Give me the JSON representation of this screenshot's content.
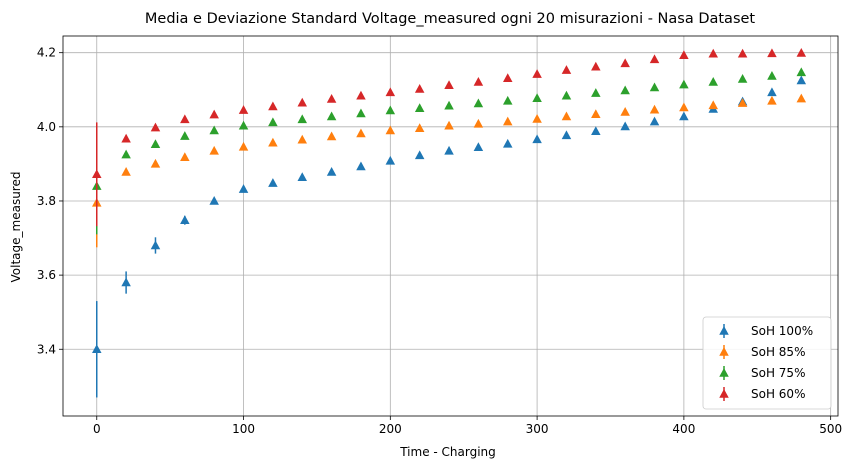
{
  "chart_data": {
    "type": "scatter",
    "title": "Media e Deviazione Standard Voltage_measured  ogni 20 misurazioni - Nasa Dataset",
    "xlabel": "Time - Charging",
    "ylabel": "Voltage_measured",
    "xlim": [
      -23,
      505
    ],
    "ylim": [
      3.22,
      4.245
    ],
    "xticks": [
      0,
      100,
      200,
      300,
      400,
      500
    ],
    "yticks": [
      3.4,
      3.6,
      3.8,
      4.0,
      4.2
    ],
    "xtick_labels": [
      "0",
      "100",
      "200",
      "300",
      "400",
      "500"
    ],
    "ytick_labels": [
      "3.4",
      "3.6",
      "3.8",
      "4.0",
      "4.2"
    ],
    "grid": true,
    "legend_position": "bottom-right",
    "x": [
      0,
      20,
      40,
      60,
      80,
      100,
      120,
      140,
      160,
      180,
      200,
      220,
      240,
      260,
      280,
      300,
      320,
      340,
      360,
      380,
      400,
      420,
      440,
      460,
      480
    ],
    "series": [
      {
        "name": "SoH 100%",
        "color": "#1f77b4",
        "values": [
          3.4,
          3.58,
          3.68,
          3.748,
          3.8,
          3.832,
          3.848,
          3.864,
          3.878,
          3.893,
          3.908,
          3.923,
          3.935,
          3.945,
          3.954,
          3.966,
          3.977,
          3.988,
          4.001,
          4.014,
          4.028,
          4.048,
          4.068,
          4.093,
          4.125
        ],
        "errors": [
          0.13,
          0.03,
          0.022,
          0.012,
          0.008,
          0.006,
          0.005,
          0.005,
          0.005,
          0.004,
          0.004,
          0.004,
          0.004,
          0.004,
          0.004,
          0.004,
          0.004,
          0.004,
          0.004,
          0.004,
          0.004,
          0.004,
          0.004,
          0.005,
          0.005
        ]
      },
      {
        "name": "SoH 85%",
        "color": "#ff7f0e",
        "values": [
          3.795,
          3.878,
          3.9,
          3.918,
          3.935,
          3.946,
          3.957,
          3.965,
          3.974,
          3.982,
          3.99,
          3.996,
          4.003,
          4.008,
          4.014,
          4.021,
          4.028,
          4.034,
          4.04,
          4.046,
          4.052,
          4.058,
          4.064,
          4.07,
          4.076
        ],
        "errors": [
          0.12,
          0.005,
          0.004,
          0.004,
          0.004,
          0.004,
          0.003,
          0.003,
          0.003,
          0.003,
          0.003,
          0.003,
          0.003,
          0.003,
          0.003,
          0.003,
          0.003,
          0.003,
          0.003,
          0.003,
          0.003,
          0.003,
          0.003,
          0.003,
          0.003
        ]
      },
      {
        "name": "SoH 75%",
        "color": "#2ca02c",
        "values": [
          3.84,
          3.925,
          3.953,
          3.975,
          3.99,
          4.003,
          4.012,
          4.02,
          4.028,
          4.036,
          4.044,
          4.05,
          4.057,
          4.063,
          4.07,
          4.077,
          4.084,
          4.091,
          4.098,
          4.106,
          4.114,
          4.121,
          4.129,
          4.137,
          4.147
        ],
        "errors": [
          0.13,
          0.004,
          0.004,
          0.003,
          0.003,
          0.003,
          0.003,
          0.003,
          0.003,
          0.003,
          0.003,
          0.003,
          0.003,
          0.003,
          0.003,
          0.003,
          0.003,
          0.003,
          0.003,
          0.003,
          0.003,
          0.003,
          0.003,
          0.003,
          0.003
        ]
      },
      {
        "name": "SoH 60%",
        "color": "#d62728",
        "values": [
          3.872,
          3.968,
          3.998,
          4.02,
          4.033,
          4.045,
          4.055,
          4.065,
          4.075,
          4.084,
          4.093,
          4.102,
          4.112,
          4.121,
          4.131,
          4.142,
          4.153,
          4.162,
          4.171,
          4.182,
          4.193,
          4.197,
          4.197,
          4.198,
          4.199
        ],
        "errors": [
          0.14,
          0.004,
          0.004,
          0.003,
          0.003,
          0.003,
          0.003,
          0.003,
          0.003,
          0.003,
          0.003,
          0.003,
          0.003,
          0.003,
          0.003,
          0.003,
          0.003,
          0.003,
          0.003,
          0.003,
          0.003,
          0.003,
          0.003,
          0.003,
          0.003
        ]
      }
    ]
  }
}
